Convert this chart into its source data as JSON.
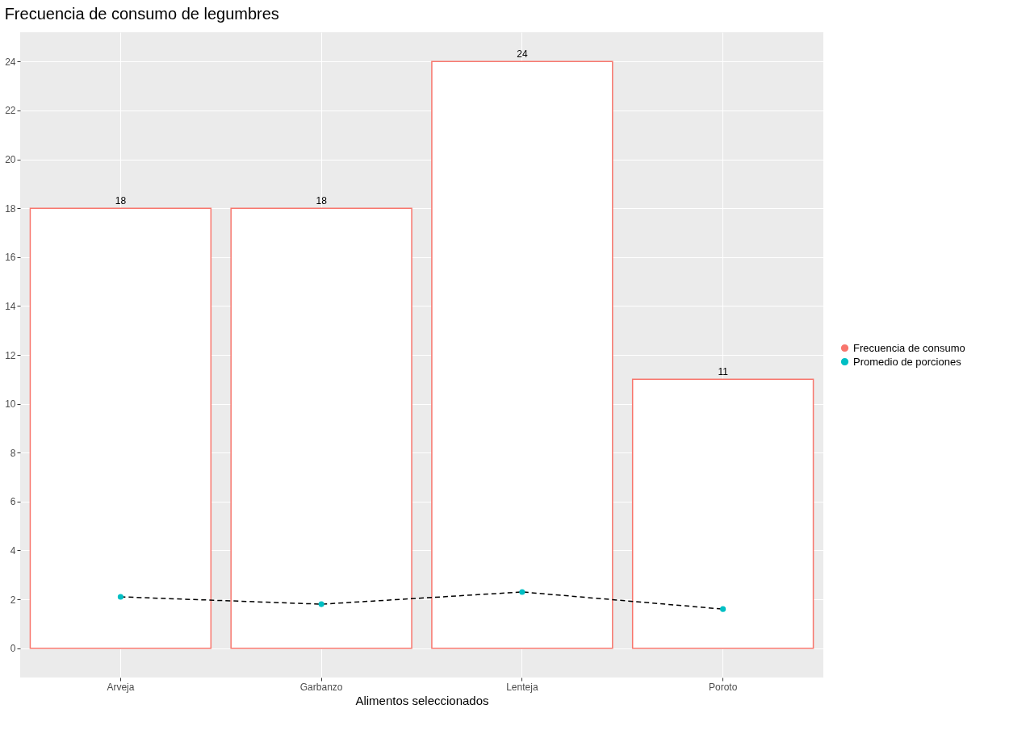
{
  "chart_data": {
    "type": "bar",
    "title": "Frecuencia de consumo de legumbres",
    "xlabel": "Alimentos seleccionados",
    "categories": [
      "Arveja",
      "Garbanzo",
      "Lenteja",
      "Poroto"
    ],
    "series": [
      {
        "name": "Frecuencia de consumo",
        "color": "#f8766d",
        "values": [
          18,
          18,
          24,
          11
        ],
        "value_labels": [
          "18",
          "18",
          "24",
          "11"
        ]
      },
      {
        "name": "Promedio de porciones",
        "type": "line",
        "color": "#00bfc4",
        "values": [
          2.1,
          1.8,
          2.3,
          1.6
        ]
      }
    ],
    "ylim": [
      -1.2,
      25.2
    ],
    "yticks": [
      0,
      2,
      4,
      6,
      8,
      10,
      12,
      14,
      16,
      18,
      20,
      22,
      24
    ],
    "grid": true,
    "legend": "right",
    "marker": "circle",
    "line_style": "dashed"
  }
}
